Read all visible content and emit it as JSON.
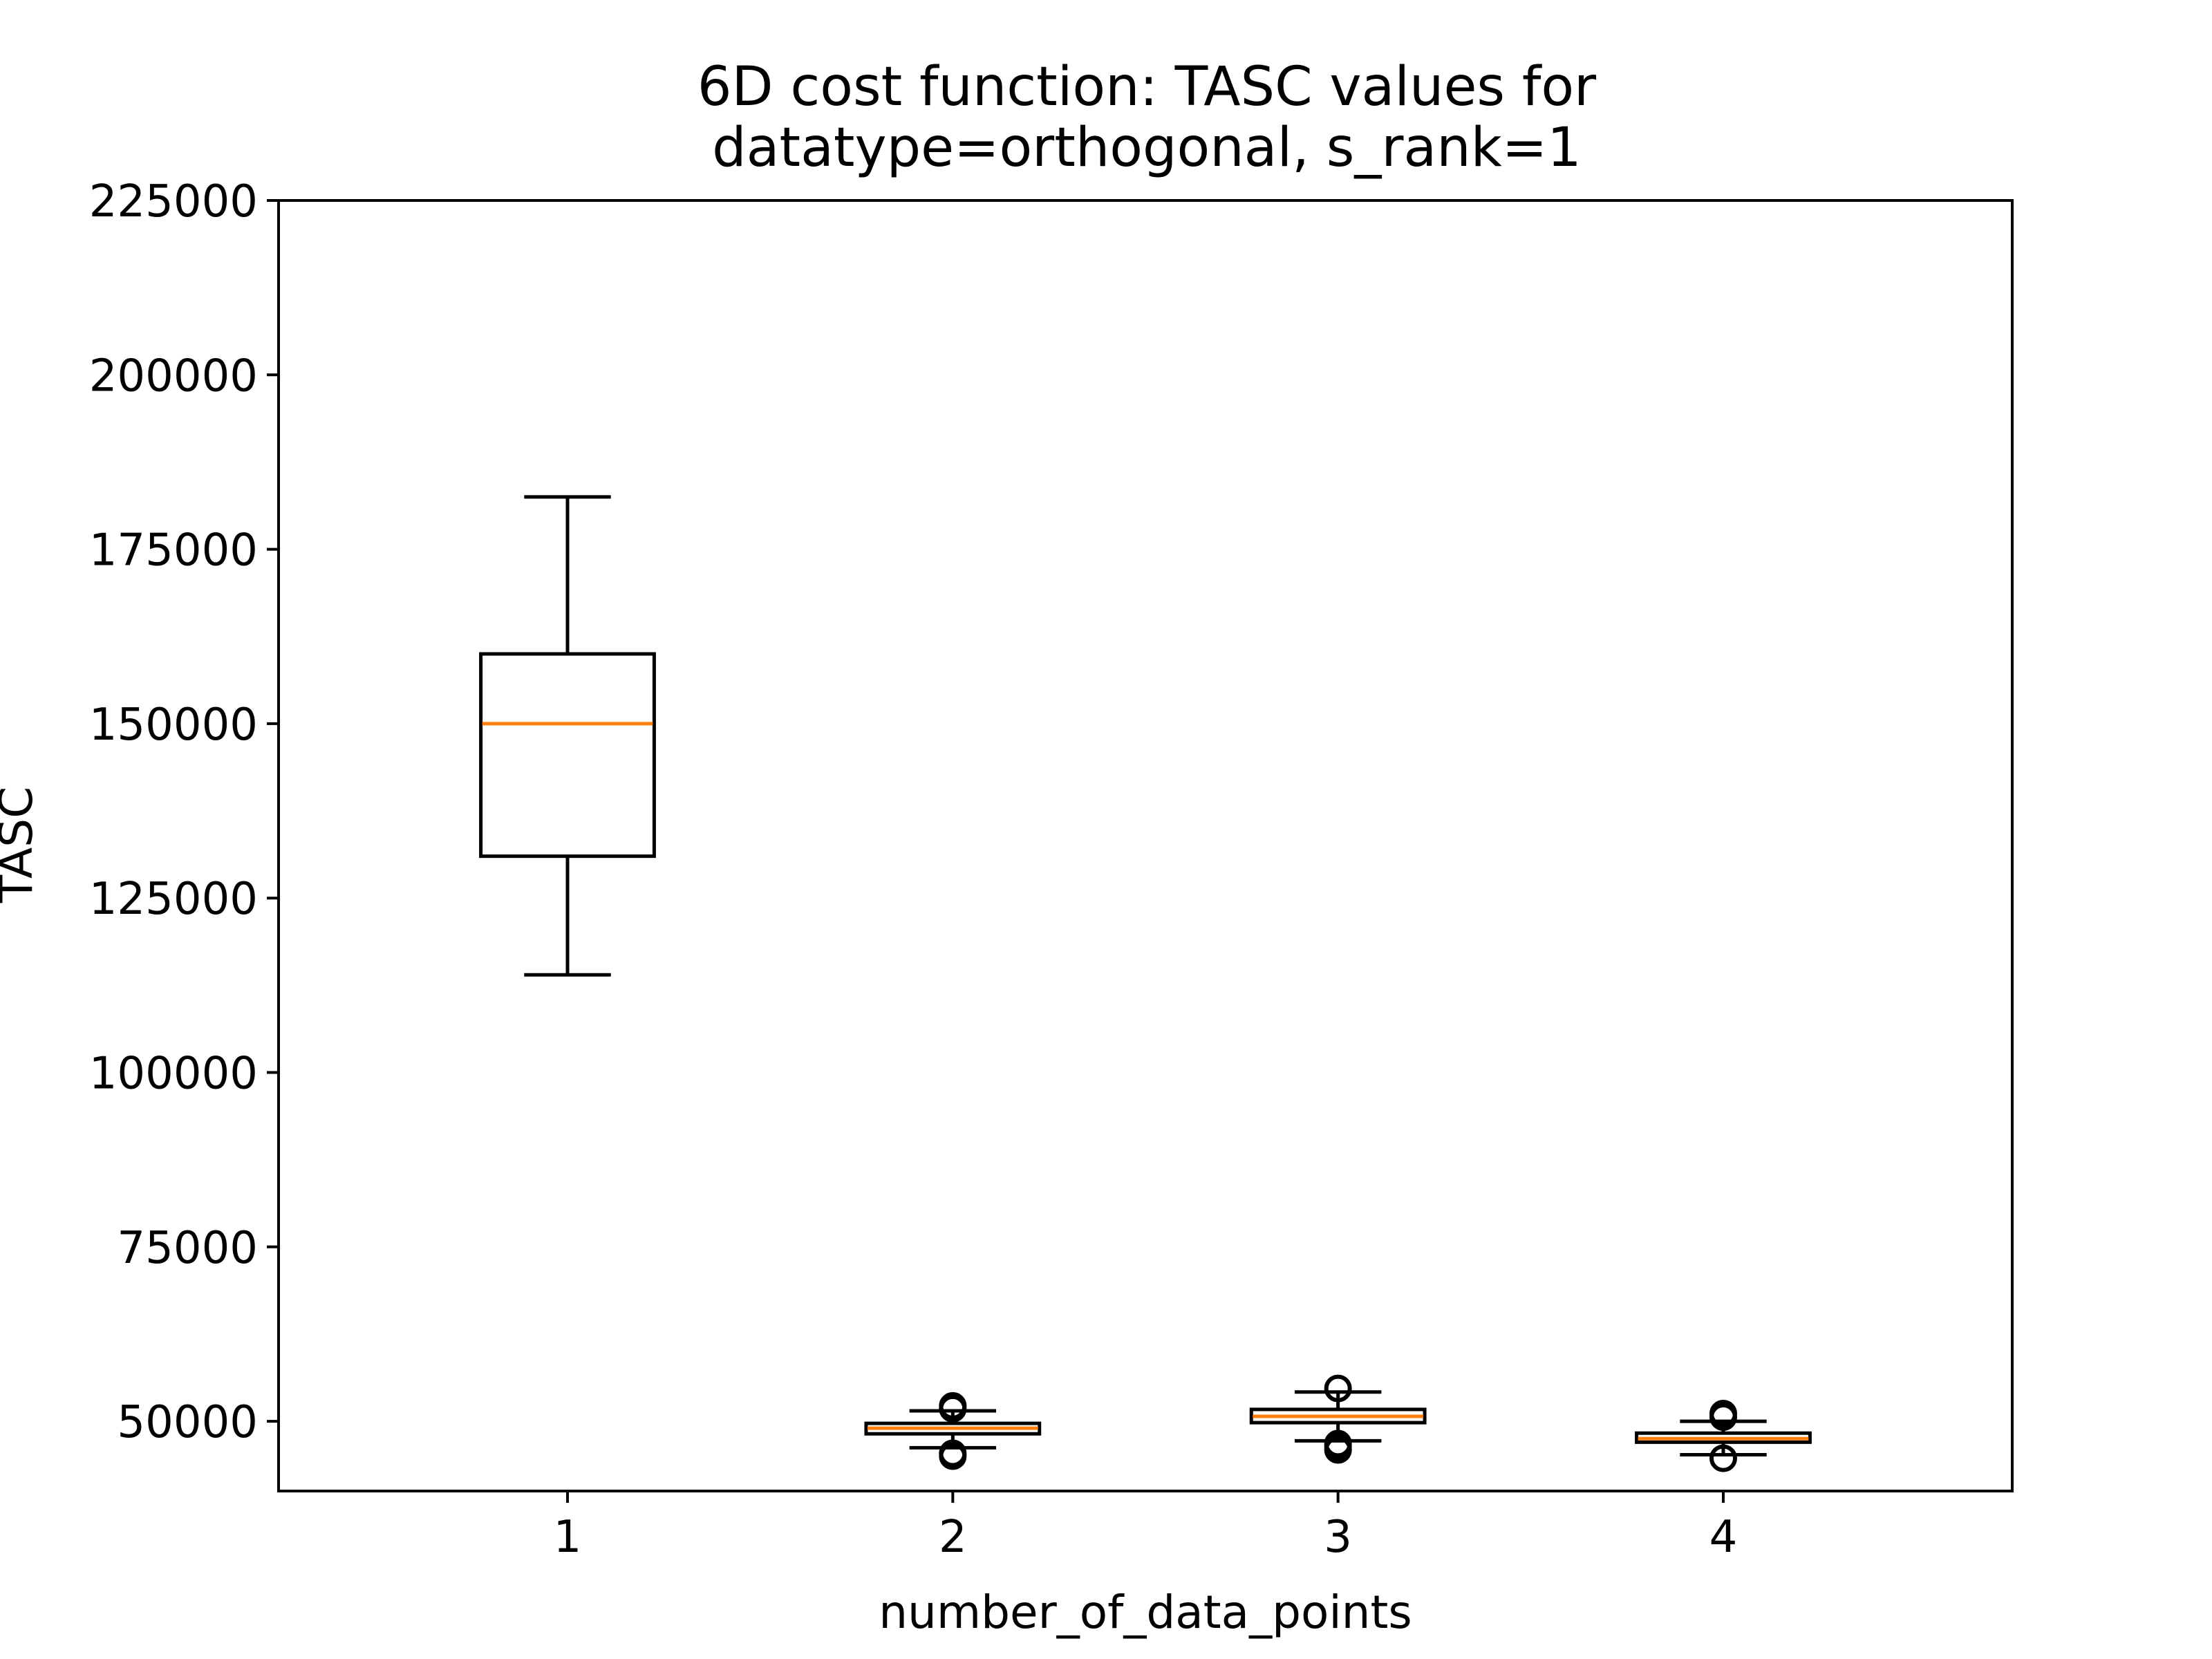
{
  "chart_data": {
    "type": "boxplot",
    "title_line1": "6D cost function: TASC values for",
    "title_line2": "datatype=orthogonal, s_rank=1",
    "xlabel": "number_of_data_points",
    "ylabel": "TASC",
    "categories": [
      "1",
      "2",
      "3",
      "4"
    ],
    "ylim": [
      40000,
      225000
    ],
    "yticks": [
      50000,
      75000,
      100000,
      125000,
      150000,
      175000,
      200000,
      225000
    ],
    "ytick_labels": [
      "50000",
      "75000",
      "100000",
      "125000",
      "150000",
      "175000",
      "200000",
      "225000"
    ],
    "grid": false,
    "colors": {
      "box": "#000000",
      "median": "#ff7f0e",
      "background": "#ffffff"
    },
    "boxes": [
      {
        "category": "1",
        "whisker_low": 114000,
        "q1": 131000,
        "median": 150000,
        "q3": 160000,
        "whisker_high": 182500,
        "outliers": []
      },
      {
        "category": "2",
        "whisker_low": 46200,
        "q1": 48200,
        "median": 49000,
        "q3": 49700,
        "whisker_high": 51500,
        "outliers": [
          45000,
          45400,
          51800,
          52200
        ]
      },
      {
        "category": "3",
        "whisker_low": 47200,
        "q1": 49800,
        "median": 50700,
        "q3": 51700,
        "whisker_high": 54200,
        "outliers": [
          45900,
          46400,
          46800,
          54700
        ]
      },
      {
        "category": "4",
        "whisker_low": 45200,
        "q1": 47000,
        "median": 47500,
        "q3": 48300,
        "whisker_high": 50000,
        "outliers": [
          44700,
          50600,
          51100
        ]
      }
    ]
  }
}
